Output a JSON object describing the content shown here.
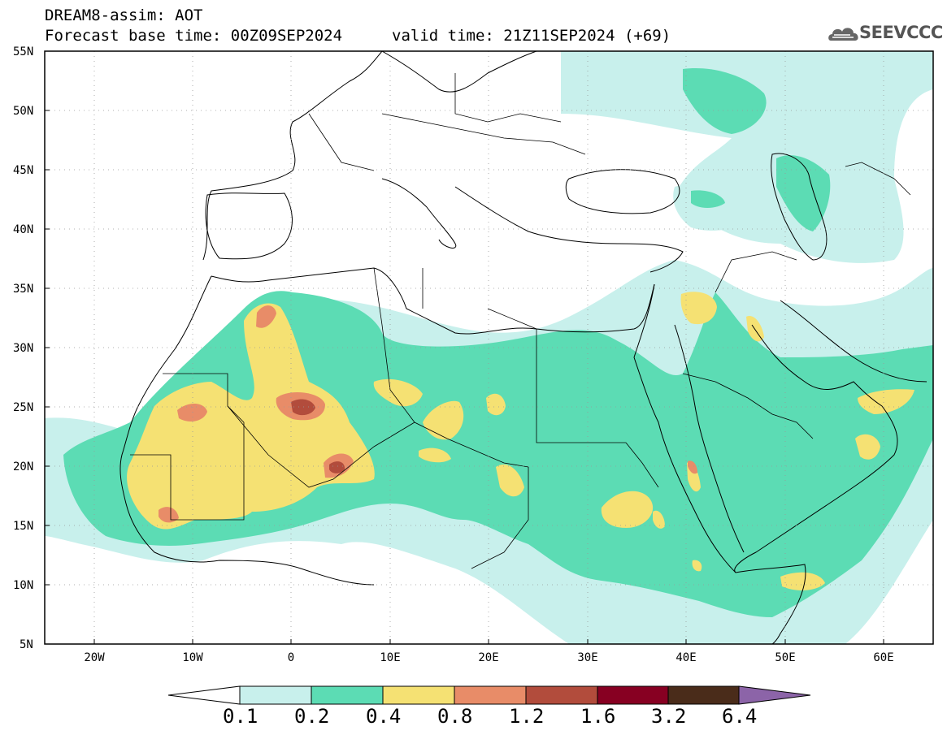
{
  "header": {
    "title_line1": "DREAM8-assim: AOT",
    "title_line2": "Forecast base time: 00Z09SEP2024",
    "valid_time": "valid time: 21Z11SEP2024 (+69)",
    "logo_text": "SEEVCCC"
  },
  "map": {
    "lat_labels": [
      "55N",
      "50N",
      "45N",
      "40N",
      "35N",
      "30N",
      "25N",
      "20N",
      "15N",
      "10N",
      "5N"
    ],
    "lon_labels": [
      "20W",
      "10W",
      "0",
      "10E",
      "20E",
      "30E",
      "40E",
      "50E",
      "60E"
    ],
    "lat_range": [
      5,
      55
    ],
    "lon_range": [
      -25,
      65
    ],
    "grid": "dotted"
  },
  "colorbar": {
    "labels": [
      "0.1",
      "0.2",
      "0.4",
      "0.8",
      "1.2",
      "1.6",
      "3.2",
      "6.4"
    ],
    "colors": [
      "#ffffff",
      "#c8f0ec",
      "#5cdcb4",
      "#f5e173",
      "#e88c68",
      "#b24c3c",
      "#870022",
      "#4a2c1a",
      "#8c64a8"
    ]
  },
  "colors": {
    "aot_0_1_0_2": "#c8f0ec",
    "aot_0_2_0_4": "#5cdcb4",
    "aot_0_4_0_8": "#f5e173",
    "aot_0_8_1_2": "#e88c68",
    "aot_1_2_1_6": "#b24c3c",
    "aot_1_6_3_2": "#870022"
  }
}
